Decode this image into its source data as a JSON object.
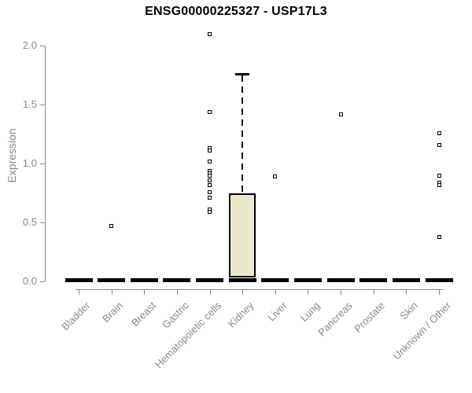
{
  "header": {
    "title": "ENSG00000225327 - USP17L3"
  },
  "chart_data": {
    "type": "boxplot",
    "title": "ENSG00000225327 - USP17L3",
    "xlabel": "",
    "ylabel": "Expression",
    "ylim": [
      0.0,
      2.1
    ],
    "ytick_labels": [
      "0.0",
      "0.5",
      "1.0",
      "1.5",
      "2.0"
    ],
    "ytick_values": [
      0.0,
      0.5,
      1.0,
      1.5,
      2.0
    ],
    "grid": false,
    "legend": "none",
    "colors": {
      "box_fill": "#ece8cd",
      "box_border": "#000000",
      "median": "#000000",
      "outlier_border": "#000000",
      "outlier_fill": "#ffffff",
      "axis": "#8a8a8a",
      "title": "#000000"
    },
    "categories": [
      "Bladder",
      "Brain",
      "Breast",
      "Gastric",
      "Hematopoietic cells",
      "Kidney",
      "Liver",
      "Lung",
      "Pancreas",
      "Prostate",
      "Skin",
      "Unknown / Other"
    ],
    "series": [
      {
        "category": "Bladder",
        "median": 0,
        "q1": 0,
        "q3": 0,
        "whisker_low": 0,
        "whisker_high": 0,
        "outliers": []
      },
      {
        "category": "Brain",
        "median": 0,
        "q1": 0,
        "q3": 0,
        "whisker_low": 0,
        "whisker_high": 0,
        "outliers": [
          0.47
        ]
      },
      {
        "category": "Breast",
        "median": 0,
        "q1": 0,
        "q3": 0,
        "whisker_low": 0,
        "whisker_high": 0,
        "outliers": []
      },
      {
        "category": "Gastric",
        "median": 0,
        "q1": 0,
        "q3": 0,
        "whisker_low": 0,
        "whisker_high": 0,
        "outliers": []
      },
      {
        "category": "Hematopoietic cells",
        "median": 0,
        "q1": 0,
        "q3": 0,
        "whisker_low": 0,
        "whisker_high": 0,
        "outliers": [
          2.1,
          1.44,
          1.13,
          1.11,
          1.02,
          0.94,
          0.92,
          0.9,
          0.86,
          0.82,
          0.76,
          0.71,
          0.61,
          0.59
        ]
      },
      {
        "category": "Kidney",
        "median": 0,
        "q1": 0,
        "q3": 0.75,
        "whisker_low": 0,
        "whisker_high": 1.76,
        "outliers": []
      },
      {
        "category": "Liver",
        "median": 0,
        "q1": 0,
        "q3": 0,
        "whisker_low": 0,
        "whisker_high": 0,
        "outliers": [
          0.89
        ]
      },
      {
        "category": "Lung",
        "median": 0,
        "q1": 0,
        "q3": 0,
        "whisker_low": 0,
        "whisker_high": 0,
        "outliers": []
      },
      {
        "category": "Pancreas",
        "median": 0,
        "q1": 0,
        "q3": 0,
        "whisker_low": 0,
        "whisker_high": 0,
        "outliers": [
          1.42
        ]
      },
      {
        "category": "Prostate",
        "median": 0,
        "q1": 0,
        "q3": 0,
        "whisker_low": 0,
        "whisker_high": 0,
        "outliers": []
      },
      {
        "category": "Skin",
        "median": 0,
        "q1": 0,
        "q3": 0,
        "whisker_low": 0,
        "whisker_high": 0,
        "outliers": []
      },
      {
        "category": "Unknown / Other",
        "median": 0,
        "q1": 0,
        "q3": 0,
        "whisker_low": 0,
        "whisker_high": 0,
        "outliers": [
          1.26,
          1.16,
          0.9,
          0.84,
          0.82,
          0.38
        ]
      }
    ]
  }
}
